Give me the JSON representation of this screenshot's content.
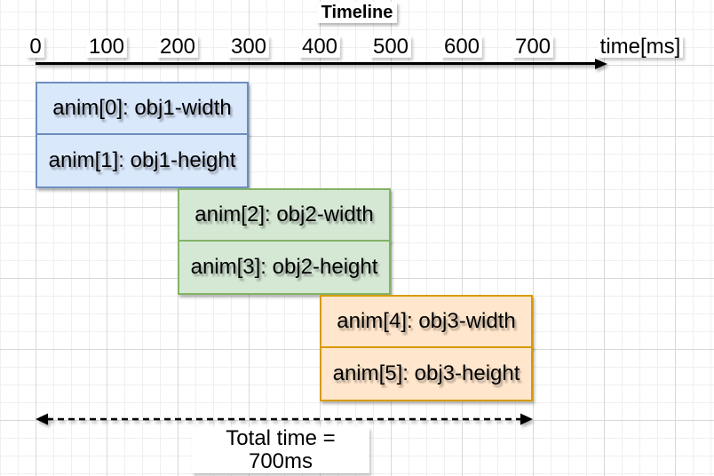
{
  "title": "Timeline",
  "axis": {
    "unit_label": "time[ms]",
    "ticks": [
      "0",
      "100",
      "200",
      "300",
      "400",
      "500",
      "600",
      "700"
    ]
  },
  "bars": [
    {
      "label": "anim[0]: obj1-width",
      "start_ms": 0,
      "end_ms": 300,
      "fill": "#dae8fc",
      "stroke": "#6c8ebf"
    },
    {
      "label": "anim[1]: obj1-height",
      "start_ms": 0,
      "end_ms": 300,
      "fill": "#dae8fc",
      "stroke": "#6c8ebf"
    },
    {
      "label": "anim[2]: obj2-width",
      "start_ms": 200,
      "end_ms": 500,
      "fill": "#d5e8d4",
      "stroke": "#82b366"
    },
    {
      "label": "anim[3]: obj2-height",
      "start_ms": 200,
      "end_ms": 500,
      "fill": "#d5e8d4",
      "stroke": "#82b366"
    },
    {
      "label": "anim[4]: obj3-width",
      "start_ms": 400,
      "end_ms": 700,
      "fill": "#ffe6cc",
      "stroke": "#d79b00"
    },
    {
      "label": "anim[5]: obj3-height",
      "start_ms": 400,
      "end_ms": 700,
      "fill": "#ffe6cc",
      "stroke": "#d79b00"
    }
  ],
  "total": {
    "label": "Total time = 700ms",
    "start_ms": 0,
    "end_ms": 700
  },
  "colors": {
    "axis": "#000000",
    "text": "#000000",
    "grid_minor": "#efefef",
    "grid_major": "#d9d9d9",
    "background": "#ffffff"
  },
  "chart_data": {
    "type": "bar",
    "orientation": "horizontal",
    "title": "Timeline",
    "xlabel": "time[ms]",
    "xlim": [
      0,
      700
    ],
    "x_ticks": [
      0,
      100,
      200,
      300,
      400,
      500,
      600,
      700
    ],
    "grid": true,
    "legend": false,
    "series": [
      {
        "name": "anim[0]: obj1-width",
        "start": 0,
        "end": 300
      },
      {
        "name": "anim[1]: obj1-height",
        "start": 0,
        "end": 300
      },
      {
        "name": "anim[2]: obj2-width",
        "start": 200,
        "end": 500
      },
      {
        "name": "anim[3]: obj2-height",
        "start": 200,
        "end": 500
      },
      {
        "name": "anim[4]: obj3-width",
        "start": 400,
        "end": 700
      },
      {
        "name": "anim[5]: obj3-height",
        "start": 400,
        "end": 700
      }
    ],
    "annotation": "Total time = 700ms"
  }
}
